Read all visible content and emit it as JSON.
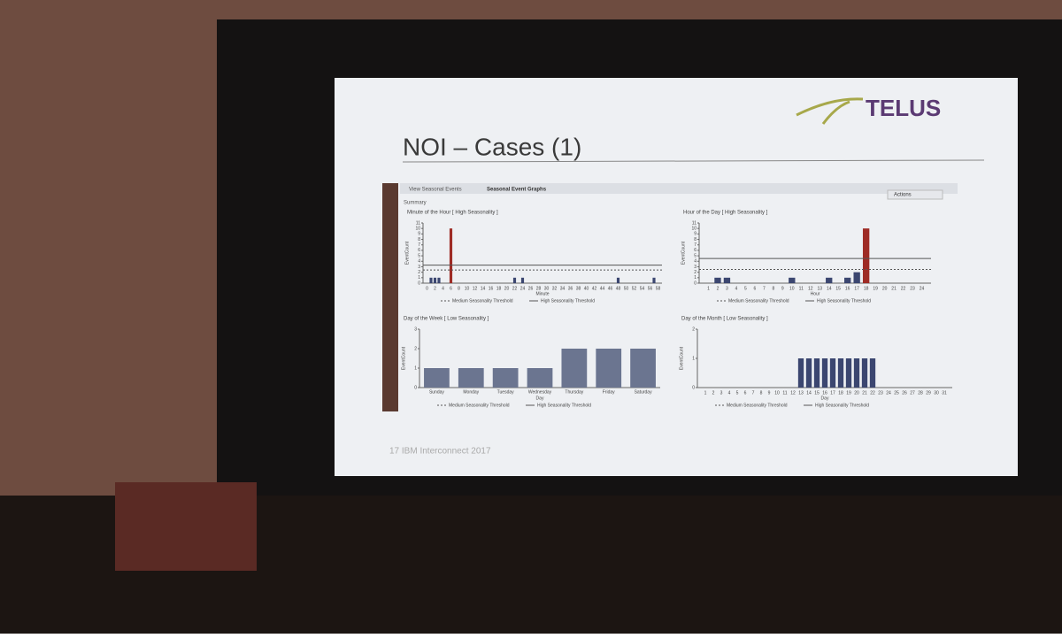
{
  "slide": {
    "logo": "TELUS",
    "title": "NOI – Cases (1)",
    "tabs": [
      "View Seasonal Events",
      "Seasonal Event Graphs"
    ],
    "actions": "Actions",
    "summary": "Summary",
    "footer": "17  IBM Interconnect 2017"
  },
  "chart_data": [
    {
      "type": "bar",
      "title": "Minute of the Hour [ High Seasonality ]",
      "x_label": "Minute",
      "y_label": "EventCount",
      "x": [
        1,
        2,
        3,
        6,
        22,
        24,
        48,
        57
      ],
      "values": [
        1,
        1,
        1,
        10,
        1,
        1,
        1,
        1
      ],
      "colors": [
        "#3b4670",
        "#3b4670",
        "#3b4670",
        "#9e2b25",
        "#3b4670",
        "#3b4670",
        "#3b4670",
        "#3b4670"
      ],
      "xlim": [
        -1,
        59
      ],
      "xticks": [
        0,
        2,
        4,
        6,
        8,
        10,
        12,
        14,
        16,
        18,
        20,
        22,
        24,
        26,
        28,
        30,
        32,
        34,
        36,
        38,
        40,
        42,
        44,
        46,
        48,
        50,
        52,
        54,
        56,
        58
      ],
      "ylim": [
        0,
        11
      ],
      "yticks": [
        0,
        1,
        2,
        3,
        4,
        5,
        6,
        7,
        8,
        9,
        10,
        11
      ],
      "legend": [
        "Medium Seasonality Threshold",
        "High Seasonality Threshold"
      ],
      "threshold_values": [
        2.4,
        3.3
      ]
    },
    {
      "type": "bar",
      "title": "Hour of the Day [ High Seasonality ]",
      "x_label": "Hour",
      "y_label": "EventCount",
      "x": [
        2,
        3,
        10,
        14,
        16,
        17,
        18
      ],
      "values": [
        1,
        1,
        1,
        1,
        1,
        2,
        10
      ],
      "colors": [
        "#3b4670",
        "#3b4670",
        "#3b4670",
        "#3b4670",
        "#3b4670",
        "#3b4670",
        "#9e2b25"
      ],
      "xlim": [
        0,
        25
      ],
      "xticks": [
        1,
        2,
        3,
        4,
        5,
        6,
        7,
        8,
        9,
        10,
        11,
        12,
        13,
        14,
        15,
        16,
        17,
        18,
        19,
        20,
        21,
        22,
        23,
        24
      ],
      "ylim": [
        0,
        11
      ],
      "yticks": [
        0,
        1,
        2,
        3,
        4,
        5,
        6,
        7,
        8,
        9,
        10,
        11
      ],
      "legend": [
        "Medium Seasonality Threshold",
        "High Seasonality Threshold"
      ],
      "threshold_values": [
        2.5,
        4.5
      ]
    },
    {
      "type": "bar",
      "title": "Day of the Week [ Low Seasonality ]",
      "x_label": "Day",
      "y_label": "EventCount",
      "categories": [
        "Sunday",
        "Monday",
        "Tuesday",
        "Wednesday",
        "Thursday",
        "Friday",
        "Saturday"
      ],
      "values": [
        1,
        1,
        1,
        1,
        2,
        2,
        2
      ],
      "color": "#6b7590",
      "ylim": [
        0,
        3
      ],
      "yticks": [
        0,
        1,
        2,
        3
      ],
      "legend": [
        "Medium Seasonality Threshold",
        "High Seasonality Threshold"
      ]
    },
    {
      "type": "bar",
      "title": "Day of the Month [ Low Seasonality ]",
      "x_label": "Day",
      "y_label": "EventCount",
      "x": [
        13,
        14,
        15,
        16,
        17,
        18,
        19,
        20,
        21,
        22
      ],
      "values": [
        1,
        1,
        1,
        1,
        1,
        1,
        1,
        1,
        1,
        1
      ],
      "color": "#3b4670",
      "xlim": [
        0,
        32
      ],
      "xticks": [
        1,
        2,
        3,
        4,
        5,
        6,
        7,
        8,
        9,
        10,
        11,
        12,
        13,
        14,
        15,
        16,
        17,
        18,
        19,
        20,
        21,
        22,
        23,
        24,
        25,
        26,
        27,
        28,
        29,
        30,
        31
      ],
      "ylim": [
        0,
        2
      ],
      "yticks": [
        0,
        1,
        2
      ],
      "legend": [
        "Medium Seasonality Threshold",
        "High Seasonality Threshold"
      ]
    }
  ]
}
